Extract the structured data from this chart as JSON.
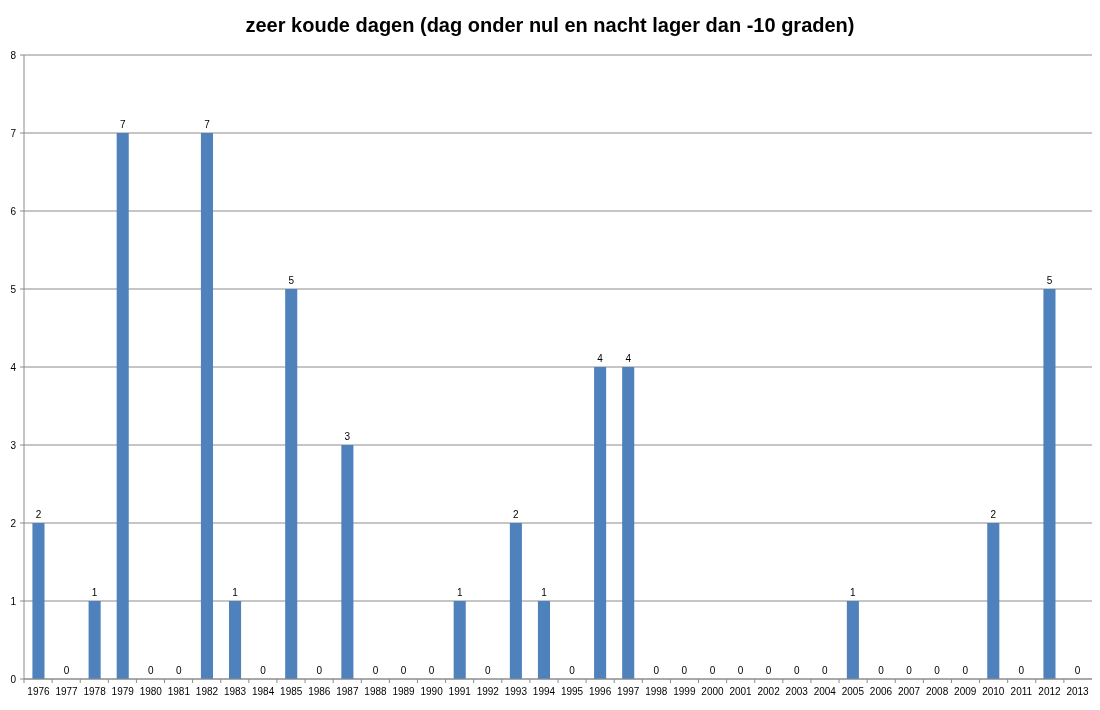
{
  "chart_data": {
    "type": "bar",
    "title": "zeer koude dagen (dag onder nul en nacht lager dan -10 graden)",
    "categories": [
      "1976",
      "1977",
      "1978",
      "1979",
      "1980",
      "1981",
      "1982",
      "1983",
      "1984",
      "1985",
      "1986",
      "1987",
      "1988",
      "1989",
      "1990",
      "1991",
      "1992",
      "1993",
      "1994",
      "1995",
      "1996",
      "1997",
      "1998",
      "1999",
      "2000",
      "2001",
      "2002",
      "2003",
      "2004",
      "2005",
      "2006",
      "2007",
      "2008",
      "2009",
      "2010",
      "2011",
      "2012",
      "2013"
    ],
    "values": [
      2,
      0,
      1,
      7,
      0,
      0,
      7,
      1,
      0,
      5,
      0,
      3,
      0,
      0,
      0,
      1,
      0,
      2,
      1,
      0,
      4,
      4,
      0,
      0,
      0,
      0,
      0,
      0,
      0,
      1,
      0,
      0,
      0,
      0,
      2,
      0,
      5,
      0
    ],
    "color": "#4f81bd",
    "ylim": [
      0,
      8
    ],
    "yticks": [
      0,
      1,
      2,
      3,
      4,
      5,
      6,
      7,
      8
    ],
    "grid": "y",
    "data_labels": true
  }
}
